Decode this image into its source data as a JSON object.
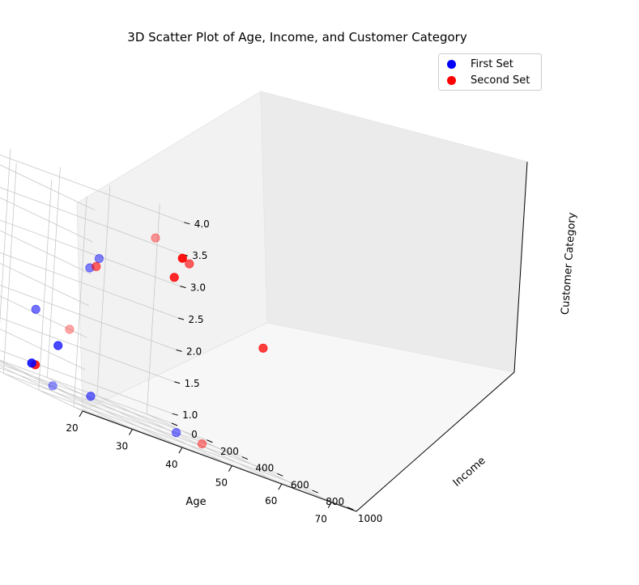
{
  "chart_data": {
    "type": "scatter",
    "title": "3D Scatter Plot of Age, Income, and Customer Category",
    "xlabel": "Age",
    "ylabel": "Income",
    "zlabel": "Customer Category",
    "xticks": [
      "20",
      "30",
      "40",
      "50",
      "60",
      "70"
    ],
    "yticks": [
      "0",
      "200",
      "400",
      "600",
      "800",
      "1000"
    ],
    "zticks": [
      "1.0",
      "1.5",
      "2.0",
      "2.5",
      "3.0",
      "3.5",
      "4.0"
    ],
    "xlim": [
      20,
      75
    ],
    "ylim": [
      0,
      1050
    ],
    "zlim": [
      0.85,
      4.15
    ],
    "legend_position": "top-right",
    "grid": true,
    "series": [
      {
        "name": "First Set",
        "color": "#0000ff",
        "points": [
          {
            "x": 22,
            "y": 820,
            "z": 1.0
          },
          {
            "x": 27,
            "y": 560,
            "z": 2.0
          },
          {
            "x": 30,
            "y": 760,
            "z": 3.0
          },
          {
            "x": 31,
            "y": 780,
            "z": 3.2
          },
          {
            "x": 36,
            "y": 20,
            "z": 1.0
          },
          {
            "x": 36,
            "y": 640,
            "z": 1.0
          },
          {
            "x": 40,
            "y": 330,
            "z": 1.5
          },
          {
            "x": 44,
            "y": 900,
            "z": 1.0
          },
          {
            "x": 45,
            "y": 50,
            "z": 1.0
          }
        ]
      },
      {
        "name": "Second Set",
        "color": "#ff0000",
        "points": [
          {
            "x": 20,
            "y": 950,
            "z": 2.0
          },
          {
            "x": 34,
            "y": 1000,
            "z": 3.9
          },
          {
            "x": 38,
            "y": 570,
            "z": 3.0
          },
          {
            "x": 45,
            "y": 70,
            "z": 1.0
          },
          {
            "x": 46,
            "y": 990,
            "z": 1.0
          },
          {
            "x": 52,
            "y": 690,
            "z": 3.6
          },
          {
            "x": 62,
            "y": 330,
            "z": 3.2
          },
          {
            "x": 68,
            "y": 200,
            "z": 3.5
          },
          {
            "x": 70,
            "y": 620,
            "z": 2.7
          }
        ]
      }
    ]
  }
}
